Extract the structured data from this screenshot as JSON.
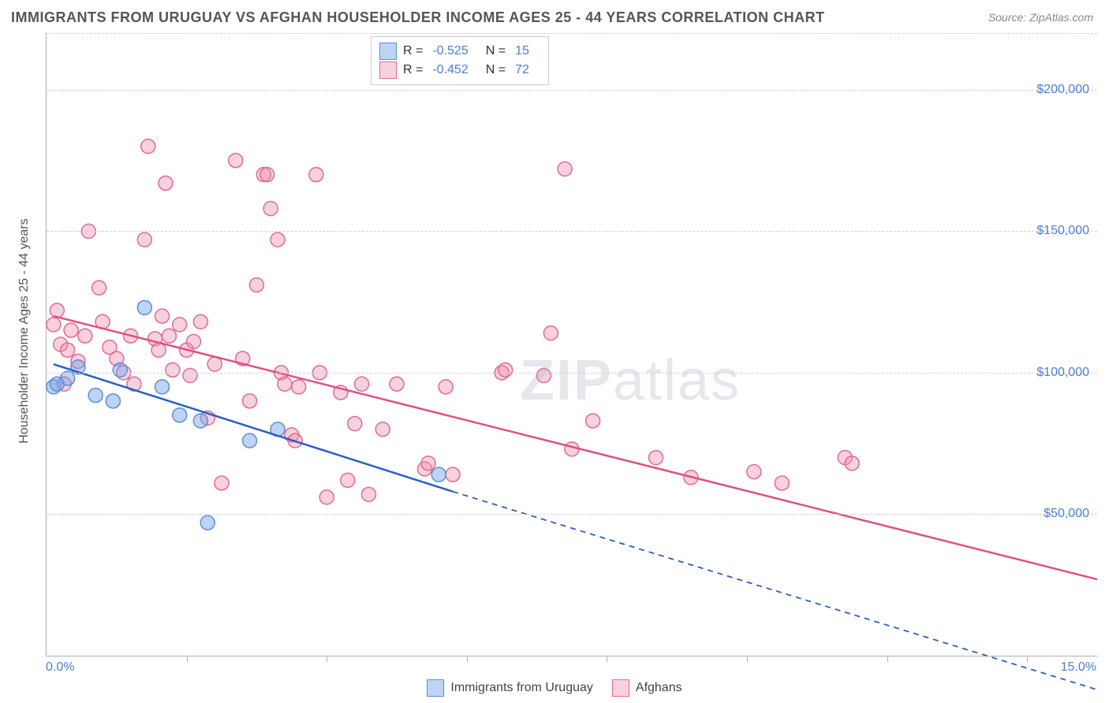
{
  "title": "IMMIGRANTS FROM URUGUAY VS AFGHAN HOUSEHOLDER INCOME AGES 25 - 44 YEARS CORRELATION CHART",
  "source": "Source: ZipAtlas.com",
  "yaxis_label": "Householder Income Ages 25 - 44 years",
  "watermark_a": "ZIP",
  "watermark_b": "atlas",
  "chart": {
    "type": "scatter",
    "background_color": "#ffffff",
    "grid_color": "#d0d0d0",
    "axis_color": "#b0b0b0",
    "tick_label_color": "#4a7fd8",
    "axis_label_color": "#555555",
    "title_color": "#555555",
    "title_fontsize": 18,
    "label_fontsize": 16,
    "xlim": [
      0,
      15
    ],
    "ylim": [
      0,
      220000
    ],
    "xticks_at": [
      2.0,
      4.0,
      6.0,
      8.0,
      10.0,
      12.0,
      14.0
    ],
    "xlabel_min": "0.0%",
    "xlabel_max": "15.0%",
    "yticks": [
      {
        "v": 50000,
        "label": "$50,000"
      },
      {
        "v": 100000,
        "label": "$100,000"
      },
      {
        "v": 150000,
        "label": "$150,000"
      },
      {
        "v": 200000,
        "label": "$200,000"
      }
    ],
    "series": [
      {
        "name": "Immigrants from Uruguay",
        "color_fill": "rgba(110,160,230,0.45)",
        "color_stroke": "#5b8fd6",
        "line_color": "#2b5fc0",
        "marker_radius": 9,
        "R": "-0.525",
        "N": "15",
        "trend": {
          "x1": 0.1,
          "y1": 103000,
          "x2": 5.8,
          "y2": 58000,
          "solid_until_x": 5.8,
          "x3": 15.0,
          "y3": -12000
        },
        "points": [
          [
            0.1,
            95000
          ],
          [
            0.15,
            96000
          ],
          [
            0.3,
            98000
          ],
          [
            0.45,
            102000
          ],
          [
            0.7,
            92000
          ],
          [
            0.95,
            90000
          ],
          [
            1.05,
            101000
          ],
          [
            1.4,
            123000
          ],
          [
            1.65,
            95000
          ],
          [
            1.9,
            85000
          ],
          [
            2.2,
            83000
          ],
          [
            2.3,
            47000
          ],
          [
            2.9,
            76000
          ],
          [
            3.3,
            80000
          ],
          [
            5.6,
            64000
          ]
        ]
      },
      {
        "name": "Afghans",
        "color_fill": "rgba(240,140,170,0.40)",
        "color_stroke": "#e06a94",
        "line_color": "#e05080",
        "marker_radius": 9,
        "R": "-0.452",
        "N": "72",
        "trend": {
          "x1": 0.1,
          "y1": 120000,
          "x2": 15.0,
          "y2": 27000,
          "solid_until_x": 15.0
        },
        "points": [
          [
            0.1,
            117000
          ],
          [
            0.15,
            122000
          ],
          [
            0.2,
            110000
          ],
          [
            0.25,
            96000
          ],
          [
            0.3,
            108000
          ],
          [
            0.35,
            115000
          ],
          [
            0.45,
            104000
          ],
          [
            0.55,
            113000
          ],
          [
            0.6,
            150000
          ],
          [
            0.75,
            130000
          ],
          [
            0.8,
            118000
          ],
          [
            0.9,
            109000
          ],
          [
            1.0,
            105000
          ],
          [
            1.1,
            100000
          ],
          [
            1.2,
            113000
          ],
          [
            1.25,
            96000
          ],
          [
            1.4,
            147000
          ],
          [
            1.45,
            180000
          ],
          [
            1.55,
            112000
          ],
          [
            1.6,
            108000
          ],
          [
            1.65,
            120000
          ],
          [
            1.7,
            167000
          ],
          [
            1.75,
            113000
          ],
          [
            1.8,
            101000
          ],
          [
            1.9,
            117000
          ],
          [
            2.0,
            108000
          ],
          [
            2.05,
            99000
          ],
          [
            2.1,
            111000
          ],
          [
            2.2,
            118000
          ],
          [
            2.3,
            84000
          ],
          [
            2.4,
            103000
          ],
          [
            2.5,
            61000
          ],
          [
            2.7,
            175000
          ],
          [
            2.8,
            105000
          ],
          [
            2.9,
            90000
          ],
          [
            3.0,
            131000
          ],
          [
            3.1,
            170000
          ],
          [
            3.15,
            170000
          ],
          [
            3.2,
            158000
          ],
          [
            3.3,
            147000
          ],
          [
            3.35,
            100000
          ],
          [
            3.4,
            96000
          ],
          [
            3.5,
            78000
          ],
          [
            3.55,
            76000
          ],
          [
            3.6,
            95000
          ],
          [
            3.85,
            170000
          ],
          [
            3.9,
            100000
          ],
          [
            4.0,
            56000
          ],
          [
            4.2,
            93000
          ],
          [
            4.3,
            62000
          ],
          [
            4.4,
            82000
          ],
          [
            4.5,
            96000
          ],
          [
            4.6,
            57000
          ],
          [
            4.8,
            80000
          ],
          [
            5.0,
            96000
          ],
          [
            5.4,
            66000
          ],
          [
            5.45,
            68000
          ],
          [
            5.7,
            95000
          ],
          [
            5.8,
            64000
          ],
          [
            6.5,
            100000
          ],
          [
            6.55,
            101000
          ],
          [
            7.2,
            114000
          ],
          [
            7.4,
            172000
          ],
          [
            7.5,
            73000
          ],
          [
            7.8,
            83000
          ],
          [
            8.7,
            70000
          ],
          [
            9.2,
            63000
          ],
          [
            10.1,
            65000
          ],
          [
            10.5,
            61000
          ],
          [
            11.4,
            70000
          ],
          [
            11.5,
            68000
          ],
          [
            7.1,
            99000
          ]
        ]
      }
    ]
  }
}
